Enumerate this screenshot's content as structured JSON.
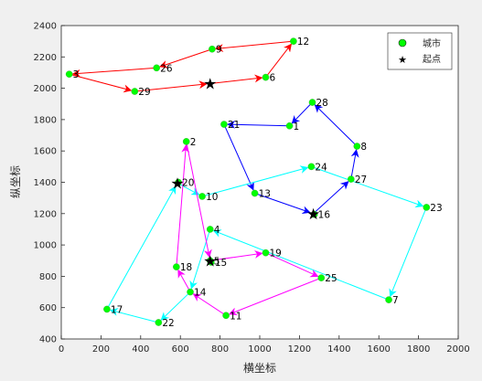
{
  "chart_data": {
    "type": "scatter",
    "title": "",
    "xlabel": "横坐标",
    "ylabel": "纵坐标",
    "xlim": [
      0,
      2000
    ],
    "ylim": [
      400,
      2400
    ],
    "xticks": [
      0,
      200,
      400,
      600,
      800,
      1000,
      1200,
      1400,
      1600,
      1800,
      2000
    ],
    "yticks": [
      400,
      600,
      800,
      1000,
      1200,
      1400,
      1600,
      1800,
      2000,
      2200,
      2400
    ],
    "grid": false,
    "legend": {
      "placement": "top-right",
      "entries": [
        {
          "label": "城市",
          "marker": "green-circle"
        },
        {
          "label": "起点",
          "marker": "black-star"
        }
      ]
    },
    "cities": [
      {
        "id": "1",
        "x": 1150,
        "y": 1760
      },
      {
        "id": "2",
        "x": 630,
        "y": 1660
      },
      {
        "id": "3",
        "x": 40,
        "y": 2090
      },
      {
        "id": "4",
        "x": 750,
        "y": 1100
      },
      {
        "id": "5",
        "x": 750,
        "y": 900
      },
      {
        "id": "6",
        "x": 1030,
        "y": 2070
      },
      {
        "id": "7",
        "x": 1650,
        "y": 650
      },
      {
        "id": "8",
        "x": 1490,
        "y": 1630
      },
      {
        "id": "9",
        "x": 760,
        "y": 2250
      },
      {
        "id": "10",
        "x": 710,
        "y": 1310
      },
      {
        "id": "11",
        "x": 830,
        "y": 550
      },
      {
        "id": "12",
        "x": 1170,
        "y": 2300
      },
      {
        "id": "13",
        "x": 975,
        "y": 1330
      },
      {
        "id": "14",
        "x": 650,
        "y": 700
      },
      {
        "id": "15",
        "x": 755,
        "y": 890
      },
      {
        "id": "16",
        "x": 1275,
        "y": 1195
      },
      {
        "id": "17",
        "x": 230,
        "y": 590
      },
      {
        "id": "18",
        "x": 580,
        "y": 860
      },
      {
        "id": "19",
        "x": 1030,
        "y": 950
      },
      {
        "id": "20",
        "x": 590,
        "y": 1400
      },
      {
        "id": "21",
        "x": 820,
        "y": 1770
      },
      {
        "id": "22",
        "x": 490,
        "y": 505
      },
      {
        "id": "23",
        "x": 1840,
        "y": 1240
      },
      {
        "id": "24",
        "x": 1260,
        "y": 1500
      },
      {
        "id": "25",
        "x": 1310,
        "y": 790
      },
      {
        "id": "26",
        "x": 480,
        "y": 2130
      },
      {
        "id": "27",
        "x": 1460,
        "y": 1420
      },
      {
        "id": "28",
        "x": 1265,
        "y": 1910
      },
      {
        "id": "29",
        "x": 370,
        "y": 1980
      }
    ],
    "starts": [
      {
        "x": 750,
        "y": 2030
      },
      {
        "x": 1270,
        "y": 1200
      },
      {
        "x": 585,
        "y": 1395
      },
      {
        "x": 750,
        "y": 900
      }
    ],
    "routes": [
      {
        "color": "#ff0000",
        "path": [
          "start0",
          "6",
          "12",
          "9",
          "26",
          "3",
          "29",
          "start0"
        ]
      },
      {
        "color": "#0000ff",
        "path": [
          "start1",
          "27",
          "8",
          "28",
          "1",
          "21",
          "13",
          "start1"
        ]
      },
      {
        "color": "#00ffff",
        "path": [
          "start2",
          "10",
          "24",
          "23",
          "7",
          "4",
          "14",
          "22",
          "17",
          "start2"
        ]
      },
      {
        "color": "#ff00ff",
        "path": [
          "start3",
          "19",
          "25",
          "11",
          "14",
          "18",
          "2",
          "start3"
        ]
      }
    ]
  }
}
